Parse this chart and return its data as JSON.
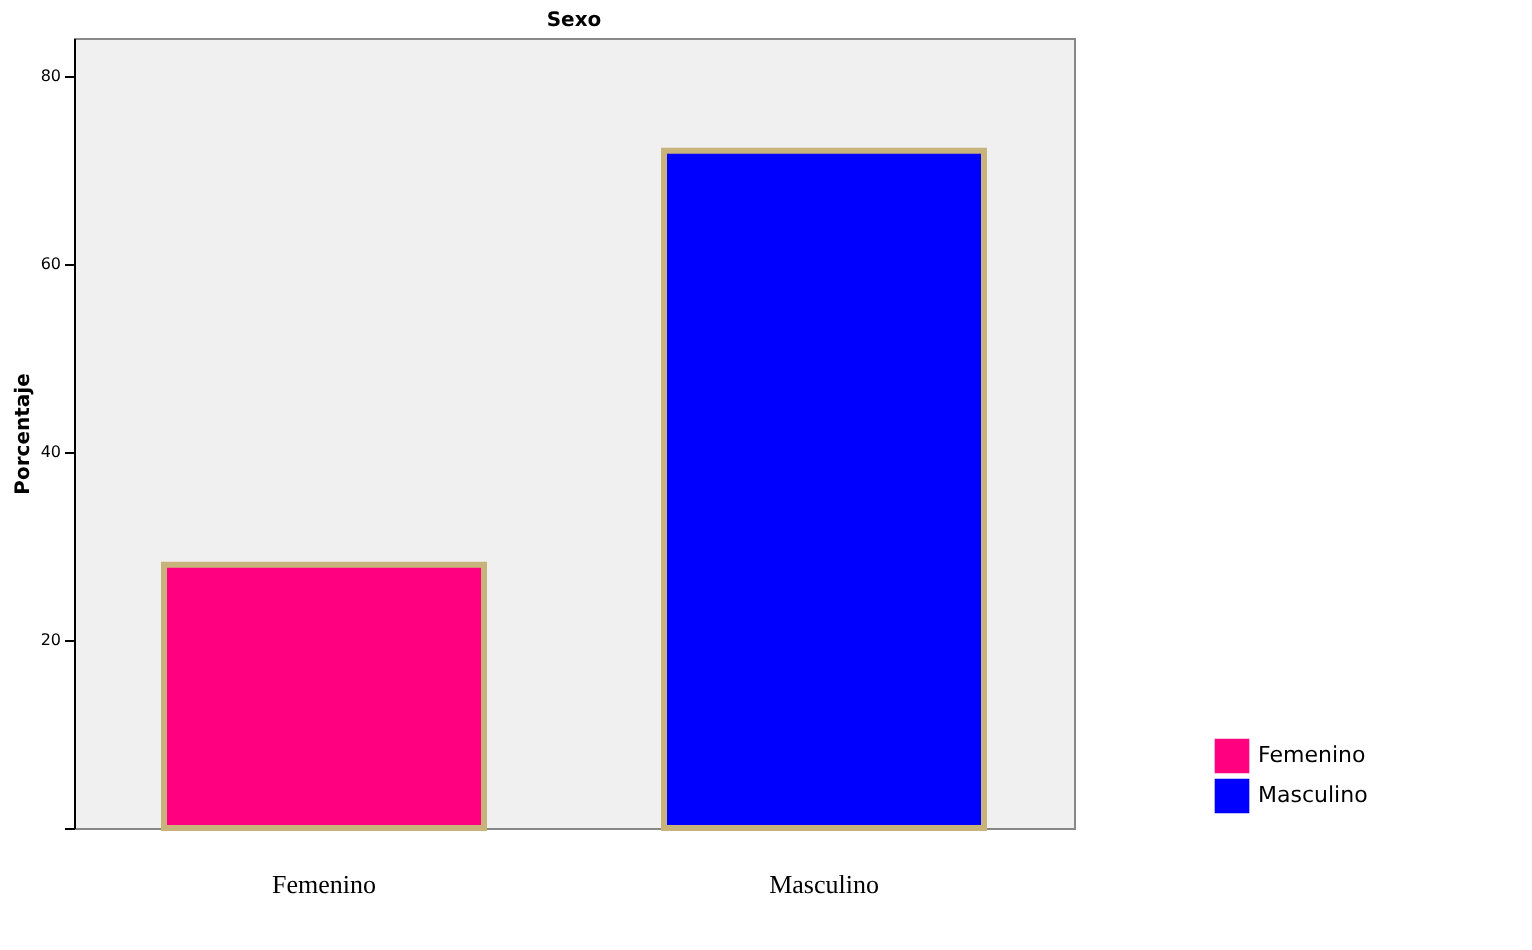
{
  "chart_data": {
    "type": "bar",
    "title": "Sexo",
    "ylabel": "Porcentaje",
    "categories": [
      "Femenino",
      "Masculino"
    ],
    "series": [
      {
        "name": "Femenino",
        "color": "#ff0080",
        "values": [
          28,
          null
        ]
      },
      {
        "name": "Masculino",
        "color": "#0000ff",
        "values": [
          null,
          72
        ]
      }
    ],
    "ylim": [
      0,
      84
    ],
    "yticks": [
      {
        "value": 0,
        "label": null
      },
      20,
      40,
      60,
      80
    ],
    "legend": "right"
  }
}
